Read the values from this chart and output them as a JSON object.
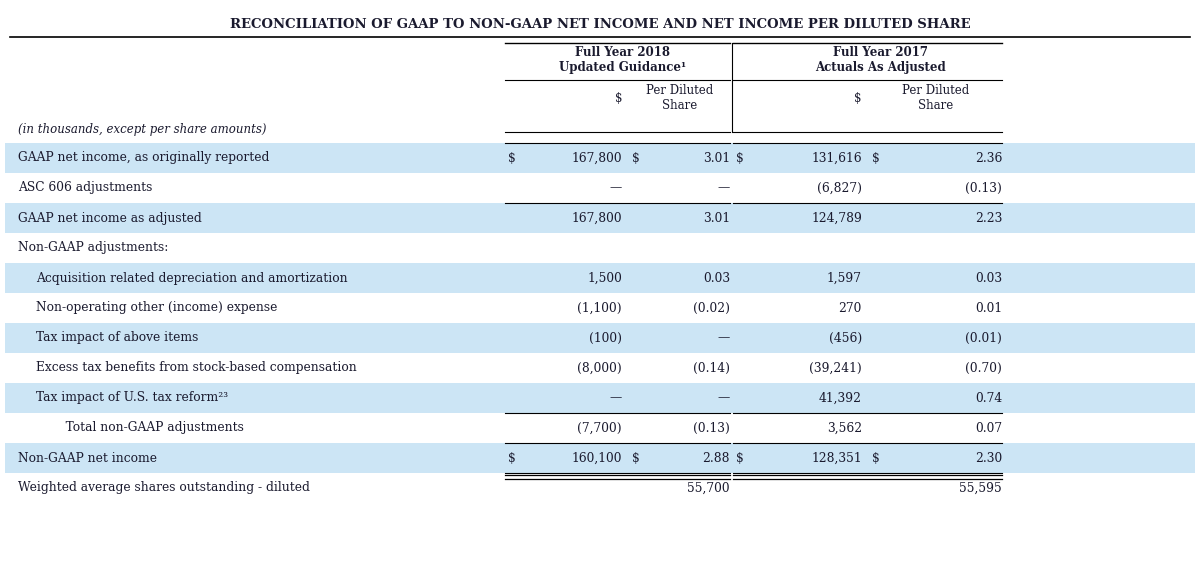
{
  "title": "RECONCILIATION OF GAAP TO NON-GAAP NET INCOME AND NET INCOME PER DILUTED SHARE",
  "col_header_group1": "Full Year 2018\nUpdated Guidance¹",
  "col_header_group2": "Full Year 2017\nActuals As Adjusted",
  "sub_header_label": "(in thousands, except per share amounts)",
  "sub_col1": "$",
  "sub_col2": "Per Diluted\nShare",
  "sub_col3": "$",
  "sub_col4": "Per Diluted\nShare",
  "rows": [
    {
      "label": "GAAP net income, as originally reported",
      "c1_prefix": "$",
      "c1": "167,800",
      "c2_prefix": "$",
      "c2": "3.01",
      "c3_prefix": "$",
      "c3": "131,616",
      "c4_prefix": "$",
      "c4": "2.36",
      "bg": "#cce5f5",
      "bold": false,
      "indent": 0,
      "top_border": true,
      "bottom_border": false
    },
    {
      "label": "ASC 606 adjustments",
      "c1_prefix": "",
      "c1": "—",
      "c2_prefix": "",
      "c2": "—",
      "c3_prefix": "",
      "c3": "(6,827)",
      "c4_prefix": "",
      "c4": "(0.13)",
      "bg": "#ffffff",
      "bold": false,
      "indent": 0,
      "top_border": false,
      "bottom_border": false
    },
    {
      "label": "GAAP net income as adjusted",
      "c1_prefix": "",
      "c1": "167,800",
      "c2_prefix": "",
      "c2": "3.01",
      "c3_prefix": "",
      "c3": "124,789",
      "c4_prefix": "",
      "c4": "2.23",
      "bg": "#cce5f5",
      "bold": false,
      "indent": 0,
      "top_border": true,
      "bottom_border": false
    },
    {
      "label": "Non-GAAP adjustments:",
      "c1_prefix": "",
      "c1": "",
      "c2_prefix": "",
      "c2": "",
      "c3_prefix": "",
      "c3": "",
      "c4_prefix": "",
      "c4": "",
      "bg": "#ffffff",
      "bold": false,
      "indent": 0,
      "top_border": false,
      "bottom_border": false
    },
    {
      "label": "Acquisition related depreciation and amortization",
      "c1_prefix": "",
      "c1": "1,500",
      "c2_prefix": "",
      "c2": "0.03",
      "c3_prefix": "",
      "c3": "1,597",
      "c4_prefix": "",
      "c4": "0.03",
      "bg": "#cce5f5",
      "bold": false,
      "indent": 1,
      "top_border": false,
      "bottom_border": false
    },
    {
      "label": "Non-operating other (income) expense",
      "c1_prefix": "",
      "c1": "(1,100)",
      "c2_prefix": "",
      "c2": "(0.02)",
      "c3_prefix": "",
      "c3": "270",
      "c4_prefix": "",
      "c4": "0.01",
      "bg": "#ffffff",
      "bold": false,
      "indent": 1,
      "top_border": false,
      "bottom_border": false
    },
    {
      "label": "Tax impact of above items",
      "c1_prefix": "",
      "c1": "(100)",
      "c2_prefix": "",
      "c2": "—",
      "c3_prefix": "",
      "c3": "(456)",
      "c4_prefix": "",
      "c4": "(0.01)",
      "bg": "#cce5f5",
      "bold": false,
      "indent": 1,
      "top_border": false,
      "bottom_border": false
    },
    {
      "label": "Excess tax benefits from stock-based compensation",
      "c1_prefix": "",
      "c1": "(8,000)",
      "c2_prefix": "",
      "c2": "(0.14)",
      "c3_prefix": "",
      "c3": "(39,241)",
      "c4_prefix": "",
      "c4": "(0.70)",
      "bg": "#ffffff",
      "bold": false,
      "indent": 1,
      "top_border": false,
      "bottom_border": false
    },
    {
      "label": "Tax impact of U.S. tax reform²³",
      "c1_prefix": "",
      "c1": "—",
      "c2_prefix": "",
      "c2": "—",
      "c3_prefix": "",
      "c3": "41,392",
      "c4_prefix": "",
      "c4": "0.74",
      "bg": "#cce5f5",
      "bold": false,
      "indent": 1,
      "top_border": false,
      "bottom_border": false
    },
    {
      "label": "   Total non-GAAP adjustments",
      "c1_prefix": "",
      "c1": "(7,700)",
      "c2_prefix": "",
      "c2": "(0.13)",
      "c3_prefix": "",
      "c3": "3,562",
      "c4_prefix": "",
      "c4": "0.07",
      "bg": "#ffffff",
      "bold": false,
      "indent": 2,
      "top_border": true,
      "bottom_border": true
    },
    {
      "label": "Non-GAAP net income",
      "c1_prefix": "$",
      "c1": "160,100",
      "c2_prefix": "$",
      "c2": "2.88",
      "c3_prefix": "$",
      "c3": "128,351",
      "c4_prefix": "$",
      "c4": "2.30",
      "bg": "#cce5f5",
      "bold": false,
      "indent": 0,
      "top_border": false,
      "bottom_border": true
    },
    {
      "label": "Weighted average shares outstanding - diluted",
      "c1_prefix": "",
      "c1": "",
      "c2_prefix": "",
      "c2": "55,700",
      "c3_prefix": "",
      "c3": "",
      "c4_prefix": "",
      "c4": "55,595",
      "bg": "#ffffff",
      "bold": false,
      "indent": 0,
      "top_border": false,
      "bottom_border": false
    }
  ],
  "bg_color": "#ffffff",
  "header_bg": "#ffffff",
  "blue_bg": "#cce5f5",
  "text_color": "#1a1a2e",
  "font_family": "serif"
}
